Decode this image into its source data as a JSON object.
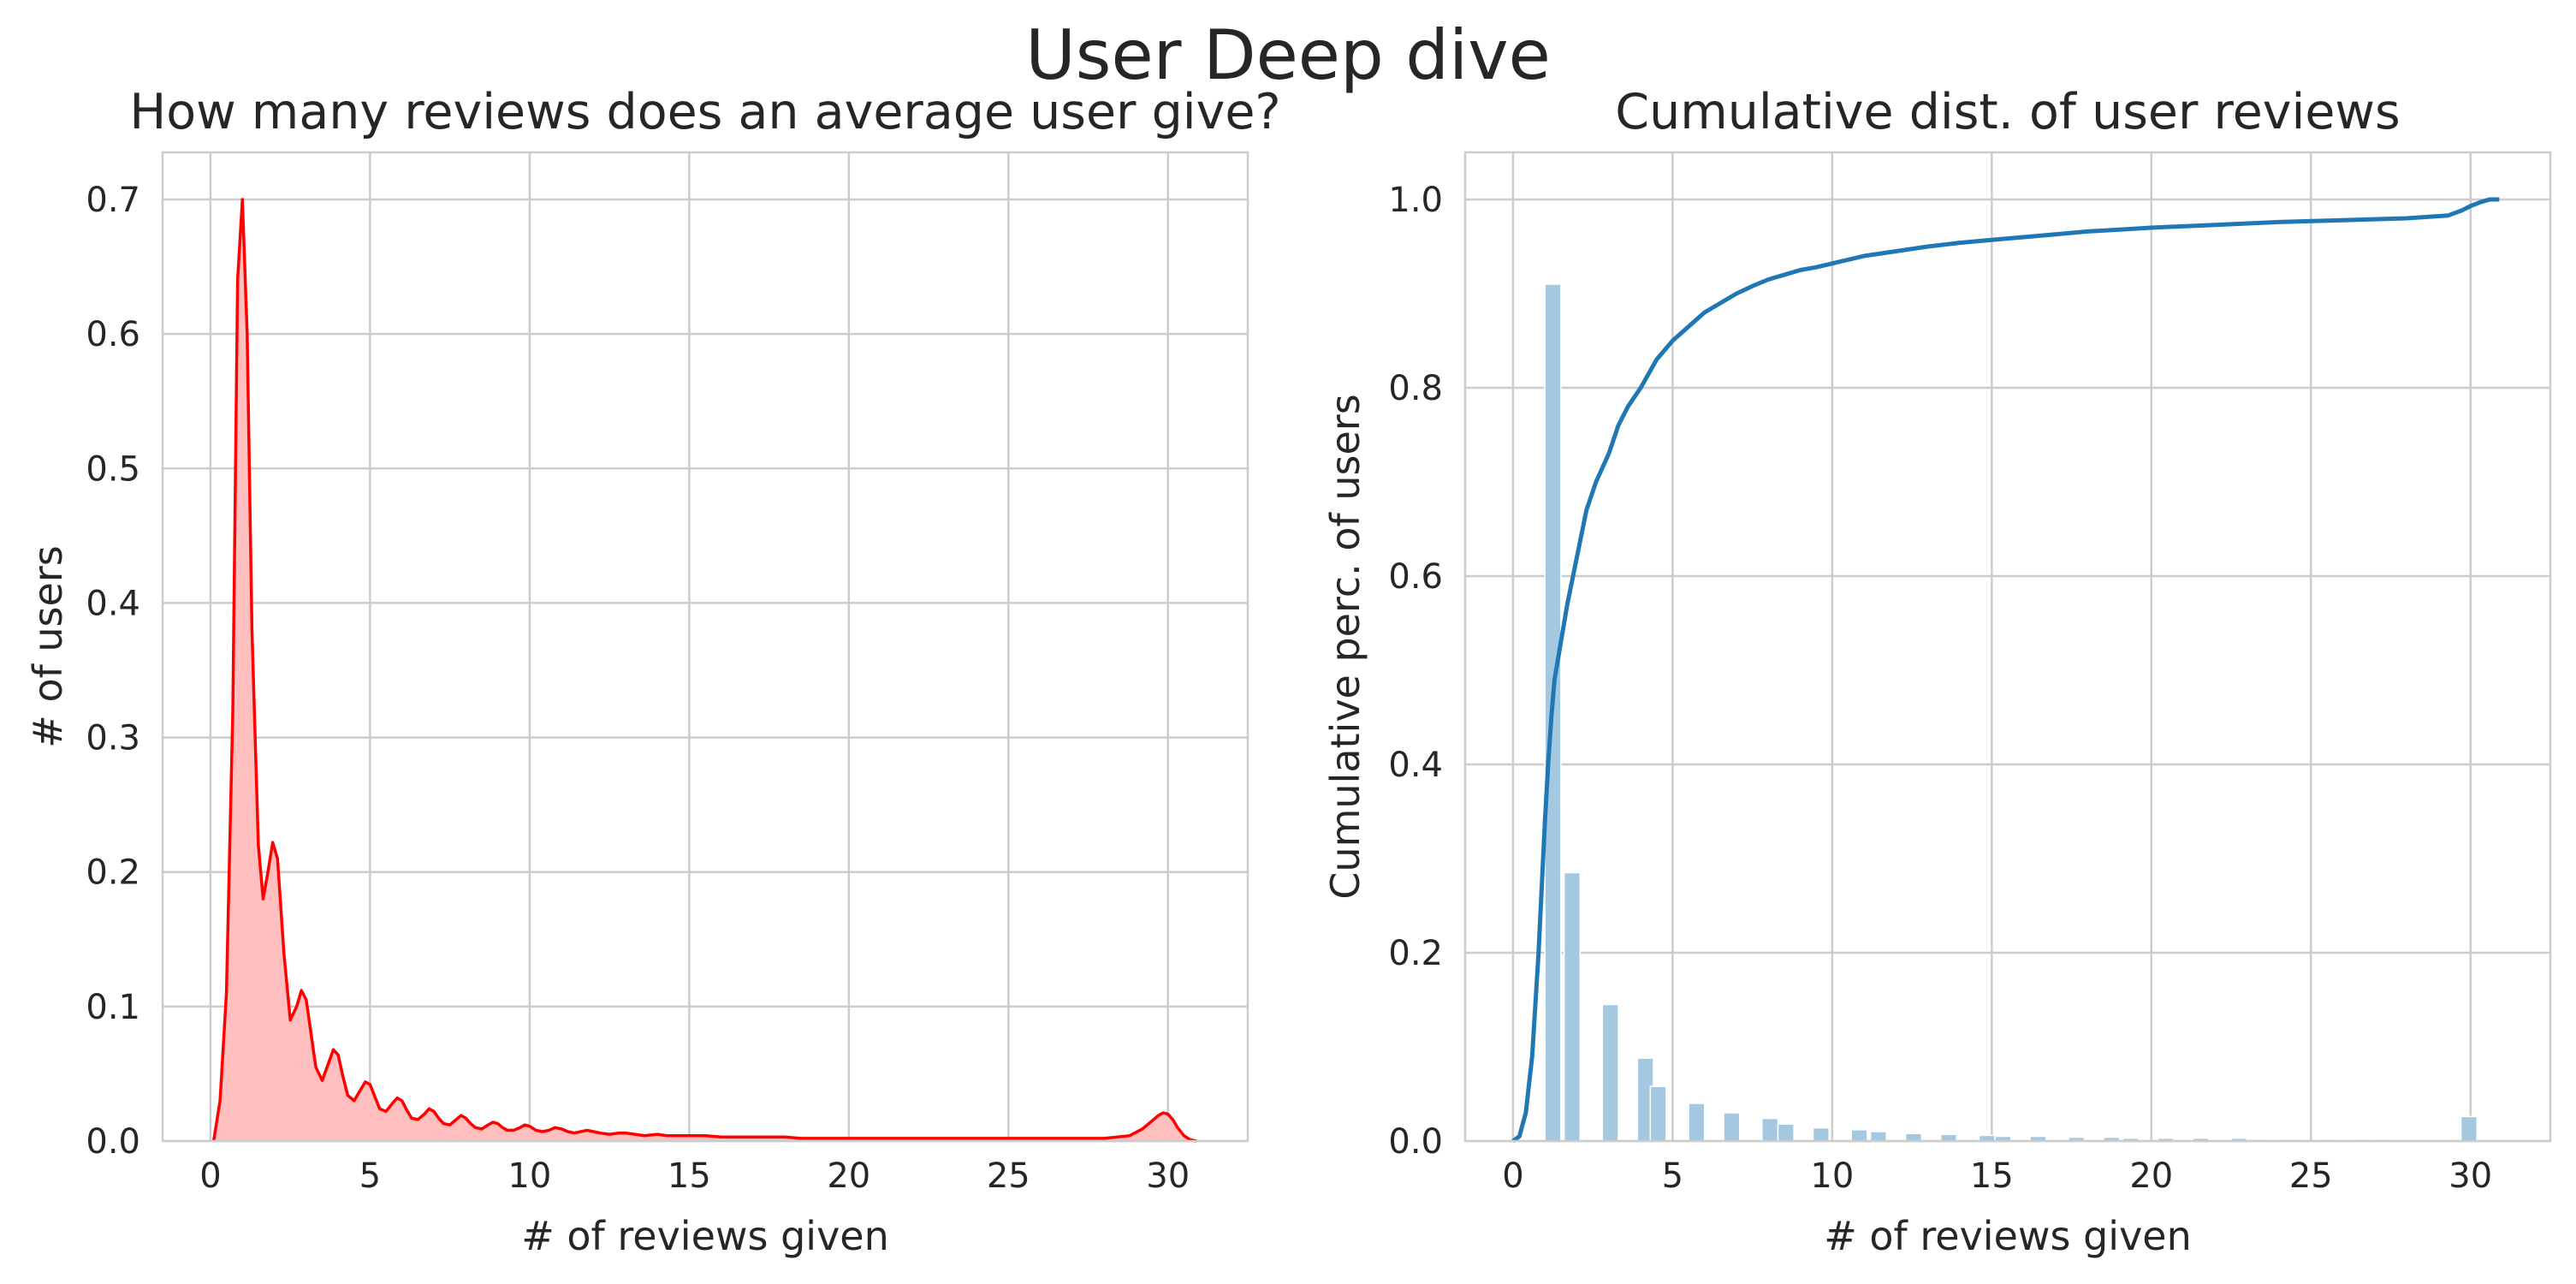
{
  "figure": {
    "title": "User Deep dive"
  },
  "chart_data": [
    {
      "type": "area",
      "title": "How many reviews does an average user give?",
      "xlabel": "# of reviews given",
      "ylabel": "# of users",
      "xlim": [
        -1.5,
        32.5
      ],
      "ylim": [
        0,
        0.735
      ],
      "xticks": [
        0,
        5,
        10,
        15,
        20,
        25,
        30
      ],
      "yticks": [
        0.0,
        0.1,
        0.2,
        0.3,
        0.4,
        0.5,
        0.6,
        0.7
      ],
      "grid": true,
      "colors": {
        "line": "#ff0000",
        "fill": "#ffbfbf"
      },
      "series": [
        {
          "x": [
            0.1,
            0.3,
            0.5,
            0.7,
            0.85,
            1.0,
            1.15,
            1.3,
            1.5,
            1.65,
            1.8,
            1.95,
            2.1,
            2.3,
            2.5,
            2.7,
            2.85,
            3.0,
            3.15,
            3.3,
            3.5,
            3.7,
            3.85,
            4.0,
            4.15,
            4.3,
            4.5,
            4.7,
            4.85,
            5.0,
            5.15,
            5.3,
            5.5,
            5.7,
            5.85,
            6.0,
            6.15,
            6.3,
            6.5,
            6.7,
            6.85,
            7.0,
            7.15,
            7.3,
            7.5,
            7.7,
            7.85,
            8.0,
            8.15,
            8.3,
            8.5,
            8.7,
            8.85,
            9.0,
            9.15,
            9.3,
            9.5,
            9.7,
            9.85,
            10.0,
            10.2,
            10.4,
            10.6,
            10.8,
            11.0,
            11.2,
            11.4,
            11.6,
            11.8,
            12.0,
            12.2,
            12.5,
            12.8,
            13.0,
            13.3,
            13.6,
            14.0,
            14.3,
            14.6,
            15.0,
            15.5,
            16.0,
            16.5,
            17.0,
            17.5,
            18.0,
            18.5,
            19.0,
            19.5,
            20.0,
            21.0,
            22.0,
            23.0,
            24.0,
            25.0,
            26.0,
            27.0,
            28.0,
            28.8,
            29.2,
            29.5,
            29.7,
            29.85,
            30.0,
            30.15,
            30.3,
            30.5,
            30.7,
            30.9
          ],
          "y": [
            0.0,
            0.03,
            0.11,
            0.32,
            0.64,
            0.7,
            0.6,
            0.38,
            0.22,
            0.18,
            0.2,
            0.222,
            0.21,
            0.14,
            0.09,
            0.1,
            0.112,
            0.105,
            0.08,
            0.055,
            0.045,
            0.058,
            0.068,
            0.064,
            0.048,
            0.034,
            0.03,
            0.038,
            0.044,
            0.042,
            0.033,
            0.024,
            0.022,
            0.028,
            0.032,
            0.03,
            0.023,
            0.017,
            0.016,
            0.02,
            0.024,
            0.022,
            0.017,
            0.013,
            0.012,
            0.016,
            0.019,
            0.017,
            0.013,
            0.01,
            0.009,
            0.012,
            0.014,
            0.013,
            0.01,
            0.008,
            0.008,
            0.01,
            0.012,
            0.011,
            0.008,
            0.007,
            0.008,
            0.01,
            0.009,
            0.007,
            0.006,
            0.007,
            0.008,
            0.007,
            0.006,
            0.005,
            0.006,
            0.006,
            0.005,
            0.004,
            0.005,
            0.004,
            0.004,
            0.004,
            0.004,
            0.003,
            0.003,
            0.003,
            0.003,
            0.003,
            0.002,
            0.002,
            0.002,
            0.002,
            0.002,
            0.002,
            0.002,
            0.002,
            0.002,
            0.002,
            0.002,
            0.002,
            0.004,
            0.009,
            0.015,
            0.019,
            0.021,
            0.02,
            0.016,
            0.01,
            0.004,
            0.001,
            0.0
          ]
        }
      ]
    },
    {
      "type": "bar+line",
      "title": "Cumulative dist. of user reviews",
      "xlabel": "# of reviews given",
      "ylabel": "Cumulative perc. of users",
      "xlim": [
        -1.5,
        32.5
      ],
      "ylim": [
        0,
        1.05
      ],
      "xticks": [
        0,
        5,
        10,
        15,
        20,
        25,
        30
      ],
      "yticks": [
        0.0,
        0.2,
        0.4,
        0.6,
        0.8,
        1.0
      ],
      "grid": true,
      "colors": {
        "bars": "#a5c8e1",
        "line": "#1f77b4"
      },
      "histogram": {
        "bin_left": [
          1.0,
          1.6,
          2.8,
          3.9,
          4.3,
          5.5,
          6.6,
          7.8,
          8.3,
          9.4,
          10.6,
          11.2,
          12.3,
          13.4,
          14.6,
          15.1,
          16.2,
          17.4,
          18.5,
          19.1,
          20.2,
          21.3,
          22.5,
          23.0,
          24.1,
          25.3,
          26.4,
          27.0,
          29.7
        ],
        "bin_width": 0.5,
        "values": [
          0.91,
          0.285,
          0.145,
          0.088,
          0.058,
          0.04,
          0.03,
          0.024,
          0.018,
          0.014,
          0.012,
          0.01,
          0.008,
          0.007,
          0.006,
          0.005,
          0.005,
          0.004,
          0.004,
          0.003,
          0.003,
          0.003,
          0.003,
          0.002,
          0.002,
          0.002,
          0.002,
          0.002,
          0.026
        ]
      },
      "cumulative": {
        "x": [
          0.0,
          0.2,
          0.4,
          0.6,
          0.8,
          0.9,
          1.0,
          1.1,
          1.2,
          1.3,
          1.5,
          1.7,
          2.0,
          2.3,
          2.6,
          3.0,
          3.3,
          3.6,
          4.0,
          4.5,
          5.0,
          5.5,
          6.0,
          6.5,
          7.0,
          7.5,
          8.0,
          8.5,
          9.0,
          9.5,
          10.0,
          11.0,
          12.0,
          13.0,
          14.0,
          15.0,
          16.0,
          17.0,
          18.0,
          19.0,
          20.0,
          22.0,
          24.0,
          26.0,
          28.0,
          29.3,
          29.7,
          30.0,
          30.3,
          30.6,
          30.9
        ],
        "y": [
          0.0,
          0.005,
          0.03,
          0.09,
          0.2,
          0.27,
          0.34,
          0.4,
          0.45,
          0.49,
          0.53,
          0.57,
          0.62,
          0.67,
          0.7,
          0.73,
          0.76,
          0.78,
          0.8,
          0.83,
          0.85,
          0.865,
          0.88,
          0.89,
          0.9,
          0.908,
          0.915,
          0.92,
          0.925,
          0.928,
          0.932,
          0.94,
          0.945,
          0.95,
          0.954,
          0.957,
          0.96,
          0.963,
          0.966,
          0.968,
          0.97,
          0.973,
          0.976,
          0.978,
          0.98,
          0.983,
          0.988,
          0.993,
          0.997,
          1.0,
          1.0
        ]
      }
    }
  ]
}
